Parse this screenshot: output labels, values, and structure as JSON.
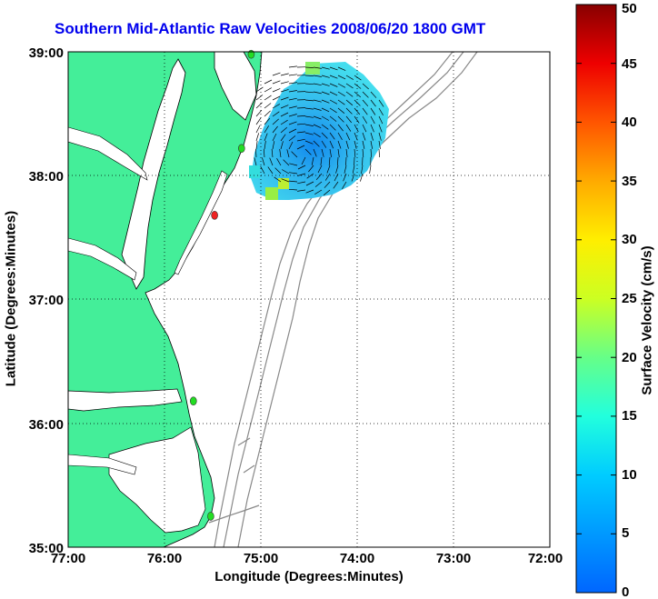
{
  "title": "Southern Mid-Atlantic Raw Velocities 2008/06/20 1800 GMT",
  "xlabel": "Longitude (Degrees:Minutes)",
  "ylabel": "Latitude (Degrees:Minutes)",
  "colorbar": {
    "label": "Surface Velocity (cm/s)",
    "range": [
      0,
      50
    ],
    "ticks": [
      "0",
      "5",
      "10",
      "15",
      "20",
      "25",
      "30",
      "35",
      "40",
      "45",
      "50"
    ],
    "colormap": "jet"
  },
  "map": {
    "lon_ticks": [
      "77:00",
      "76:00",
      "75:00",
      "74:00",
      "73:00",
      "72:00"
    ],
    "lat_ticks": [
      "39:00",
      "38:00",
      "37:00",
      "36:00",
      "35:00"
    ],
    "lon_range": [
      -77,
      -72
    ],
    "lat_range": [
      35,
      39
    ],
    "land_color": "#44ee99",
    "grid": "dotted"
  },
  "stations": [
    {
      "lon": -75.1,
      "lat": 38.98,
      "color": "#22dd22"
    },
    {
      "lon": -75.2,
      "lat": 38.22,
      "color": "#22dd22"
    },
    {
      "lon": -75.48,
      "lat": 37.68,
      "color": "#ee2222"
    },
    {
      "lon": -75.7,
      "lat": 36.18,
      "color": "#22dd22"
    },
    {
      "lon": -75.52,
      "lat": 35.25,
      "color": "#22dd22"
    }
  ]
}
